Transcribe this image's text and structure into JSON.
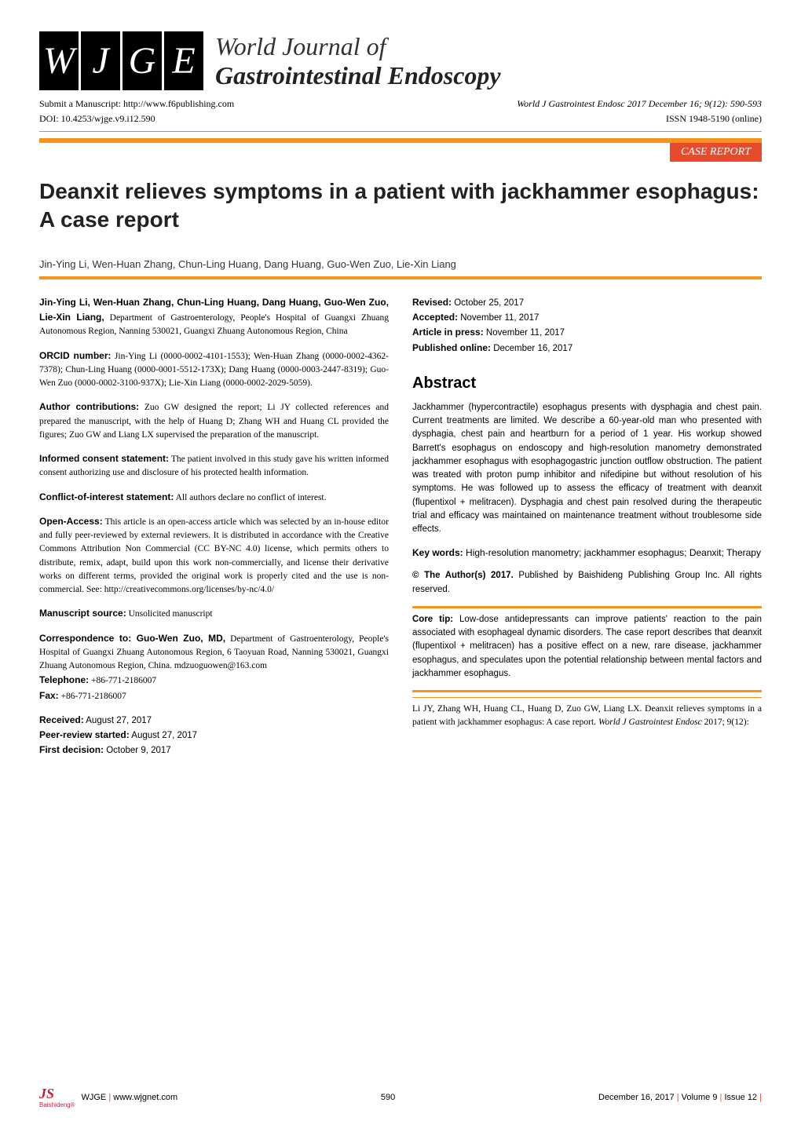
{
  "journal": {
    "logo_letters": [
      "W",
      "J",
      "G",
      "E"
    ],
    "title_line1": "World Journal of",
    "title_line2": "Gastrointestinal Endoscopy",
    "submit_text": "Submit a Manuscript: http://www.f6publishing.com",
    "citation": "World J Gastrointest Endosc 2017 December 16; 9(12): 590-593",
    "doi": "DOI: 10.4253/wjge.v9.i12.590",
    "issn": "ISSN 1948-5190 (online)",
    "article_type": "CASE REPORT"
  },
  "article": {
    "title": "Deanxit relieves symptoms in a patient with jackhammer esophagus: A case report",
    "authors": "Jin-Ying Li, Wen-Huan Zhang, Chun-Ling Huang, Dang Huang, Guo-Wen Zuo, Lie-Xin Liang"
  },
  "left_col": {
    "affiliation": "Jin-Ying Li, Wen-Huan Zhang, Chun-Ling Huang, Dang Huang, Guo-Wen Zuo, Lie-Xin Liang, Department of Gastroenterology, People's Hospital of Guangxi Zhuang Autonomous Region, Nanning 530021, Guangxi Zhuang Autonomous Region, China",
    "orcid_label": "ORCID number:",
    "orcid_text": " Jin-Ying Li (0000-0002-4101-1553); Wen-Huan Zhang (0000-0002-4362-7378); Chun-Ling Huang (0000-0001-5512-173X); Dang Huang (0000-0003-2447-8319); Guo-Wen Zuo (0000-0002-3100-937X); Lie-Xin Liang (0000-0002-2029-5059).",
    "contrib_label": "Author contributions:",
    "contrib_text": " Zuo GW designed the report; Li JY collected references and prepared the manuscript, with the help of Huang D; Zhang WH and Huang CL provided the figures; Zuo GW and Liang LX supervised the preparation of the manuscript.",
    "consent_label": "Informed consent statement:",
    "consent_text": " The patient involved in this study gave his written informed consent authorizing use and disclosure of his protected health information.",
    "conflict_label": "Conflict-of-interest statement:",
    "conflict_text": " All authors declare no conflict of interest.",
    "openaccess_label": "Open-Access:",
    "openaccess_text": " This article is an open-access article which was selected by an in-house editor and fully peer-reviewed by external reviewers. It is distributed in accordance with the Creative Commons Attribution Non Commercial (CC BY-NC 4.0) license, which permits others to distribute, remix, adapt, build upon this work non-commercially, and license their derivative works on different terms, provided the original work is properly cited and the use is non-commercial. See: http://creativecommons.org/licenses/by-nc/4.0/",
    "ms_source_label": "Manuscript source:",
    "ms_source_text": " Unsolicited manuscript",
    "corr_label": "Correspondence to: Guo-Wen Zuo, MD,",
    "corr_text": " Department of Gastroenterology, People's Hospital of Guangxi Zhuang Autonomous Region, 6 Taoyuan Road, Nanning 530021, Guangxi Zhuang Autonomous Region, China. mdzuoguowen@163.com",
    "tel_label": "Telephone:",
    "tel_text": " +86-771-2186007",
    "fax_label": "Fax:",
    "fax_text": " +86-771-2186007",
    "received_label": "Received:",
    "received_text": " August 27, 2017",
    "peer_label": "Peer-review started:",
    "peer_text": " August 27, 2017",
    "decision_label": "First decision:",
    "decision_text": " October 9, 2017"
  },
  "right_col": {
    "revised_label": "Revised:",
    "revised_text": " October 25, 2017",
    "accepted_label": "Accepted:",
    "accepted_text": " November 11, 2017",
    "inpress_label": "Article in press:",
    "inpress_text": " November 11, 2017",
    "published_label": "Published online:",
    "published_text": " December 16, 2017",
    "abstract_heading": "Abstract",
    "abstract_text": "Jackhammer (hypercontractile) esophagus presents with dysphagia and chest pain. Current treatments are limited. We describe a 60-year-old man who presented with dysphagia, chest pain and heartburn for a period of 1 year. His workup showed Barrett's esophagus on endoscopy and high-resolution manometry demonstrated jackhammer esophagus with esophagogastric junction outflow obstruction. The patient was treated with proton pump inhibitor and nifedipine but without resolution of his symptoms. He was followed up to assess the efficacy of treatment with deanxit (flupentixol + melitracen). Dysphagia and chest pain resolved during the therapeutic trial and efficacy was maintained on maintenance treatment without troublesome side effects.",
    "keywords_label": "Key words:",
    "keywords_text": " High-resolution manometry; jackhammer esophagus; Deanxit; Therapy",
    "copyright_label": "© The Author(s) 2017.",
    "copyright_text": " Published by Baishideng Publishing Group Inc. All rights reserved.",
    "coretip_label": "Core tip:",
    "coretip_text": " Low-dose antidepressants can improve patients' reaction to the pain associated with esophageal dynamic disorders. The case report describes that deanxit (flupentixol + melitracen) has a positive effect on a new, rare disease, jackhammer esophagus, and speculates upon the potential relationship between mental factors and jackhammer esophagus.",
    "citation_text": "Li JY, Zhang WH, Huang CL, Huang D, Zuo GW, Liang LX. Deanxit relieves symptoms in a patient with jackhammer esophagus: A case report. World J Gastrointest Endosc 2017; 9(12):"
  },
  "footer": {
    "brand": "Baishideng®",
    "journal_abbrev": "WJGE",
    "website": "www.wjgnet.com",
    "page": "590",
    "date": "December 16, 2017",
    "volume": "Volume 9",
    "issue": "Issue 12"
  },
  "colors": {
    "orange": "#f7941d",
    "red_badge": "#e84b2c",
    "logo_red": "#c41e3a",
    "black": "#000000"
  }
}
